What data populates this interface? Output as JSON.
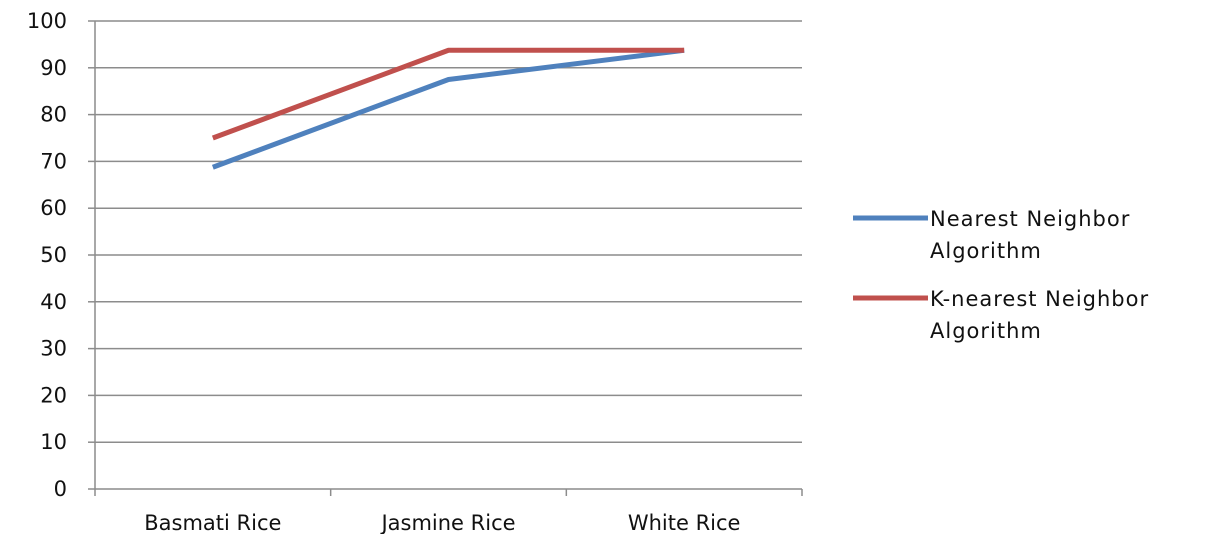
{
  "chart_data": {
    "type": "line",
    "title": "",
    "xlabel": "",
    "ylabel": "",
    "categories": [
      "Basmati Rice",
      "Jasmine Rice",
      "White Rice"
    ],
    "ylim": [
      0,
      100
    ],
    "yticks": [
      0,
      10,
      20,
      30,
      40,
      50,
      60,
      70,
      80,
      90,
      100
    ],
    "grid": true,
    "legend_position": "right",
    "series": [
      {
        "name": "Nearest Neighbor Algorithm",
        "name_lines": [
          "Nearest Neighbor",
          "Algorithm"
        ],
        "color": "#4F81BD",
        "values": [
          68.75,
          87.5,
          93.75
        ]
      },
      {
        "name": "K-nearest Neighbor Algorithm",
        "name_lines": [
          "K-nearest Neighbor",
          "Algorithm"
        ],
        "color": "#C0504D",
        "values": [
          75,
          93.75,
          93.75
        ]
      }
    ]
  }
}
